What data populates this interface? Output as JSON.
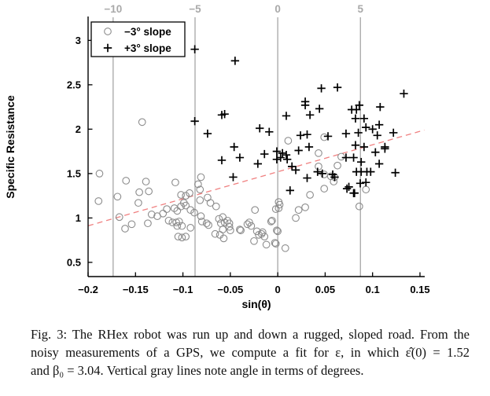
{
  "figure_label": "Fig. 3:",
  "caption": {
    "lines": [
      "Fig. 3: The RHex robot was run up and down a rugged, sloped road. From the",
      "noisy measurements of a GPS, we compute a fit for ε, in which ε̂(0) = 1.52",
      "and β₀ = 3.04. Vertical gray lines note angle in terms of degrees."
    ]
  },
  "chart_data": {
    "type": "scatter",
    "title": "",
    "xlabel": "sin(θ)",
    "ylabel": "Specific Resistance",
    "xlim": [
      -0.2,
      0.155
    ],
    "ylim": [
      0.34,
      3.26
    ],
    "grid": false,
    "xticks": [
      {
        "v": -0.2,
        "label": "−0.2"
      },
      {
        "v": -0.15,
        "label": "−0.15"
      },
      {
        "v": -0.1,
        "label": "−0.1"
      },
      {
        "v": -0.05,
        "label": "−0.05"
      },
      {
        "v": 0,
        "label": "0"
      },
      {
        "v": 0.05,
        "label": "0.05"
      },
      {
        "v": 0.1,
        "label": "0.1"
      },
      {
        "v": 0.15,
        "label": "0.15"
      }
    ],
    "yticks": [
      {
        "v": 0.5,
        "label": "0.5"
      },
      {
        "v": 1,
        "label": "1"
      },
      {
        "v": 1.5,
        "label": "1.5"
      },
      {
        "v": 2,
        "label": "2"
      },
      {
        "v": 2.5,
        "label": "2.5"
      },
      {
        "v": 3,
        "label": "3"
      }
    ],
    "degree_lines": {
      "note": "vertical gray lines mark slope angle in degrees",
      "color": "#a6a6a6",
      "label_color": "#a9a9a9",
      "items": [
        {
          "label": "−10",
          "sin": -0.1736
        },
        {
          "label": "−5",
          "sin": -0.0872
        },
        {
          "label": "0",
          "sin": 0
        },
        {
          "label": "5",
          "sin": 0.0872
        }
      ]
    },
    "fit_line": {
      "intercept": 1.52,
      "slope": 3.04,
      "x_start": -0.2,
      "x_end": 0.1545,
      "style": "dashed",
      "color": "#f08080"
    },
    "legend": {
      "position": "top-left"
    },
    "series": [
      {
        "name": "−3° slope",
        "marker": "circle",
        "color": "#8c8c8c",
        "points": [
          [
            -0.189,
            1.19
          ],
          [
            -0.188,
            1.5
          ],
          [
            -0.169,
            1.24
          ],
          [
            -0.167,
            1.01
          ],
          [
            -0.161,
            0.88
          ],
          [
            -0.16,
            1.42
          ],
          [
            -0.154,
            0.93
          ],
          [
            -0.147,
            1.17
          ],
          [
            -0.146,
            1.29
          ],
          [
            -0.143,
            2.08
          ],
          [
            -0.139,
            1.41
          ],
          [
            -0.137,
            0.94
          ],
          [
            -0.136,
            1.3
          ],
          [
            -0.133,
            1.04
          ],
          [
            -0.127,
            1.02
          ],
          [
            -0.121,
            1.05
          ],
          [
            -0.117,
            1.1
          ],
          [
            -0.115,
            0.97
          ],
          [
            -0.111,
            0.95
          ],
          [
            -0.109,
            1.11
          ],
          [
            -0.108,
            1.4
          ],
          [
            -0.107,
            0.95
          ],
          [
            -0.106,
            1.08
          ],
          [
            -0.106,
            0.91
          ],
          [
            -0.105,
            0.79
          ],
          [
            -0.104,
            0.96
          ],
          [
            -0.102,
            1.26
          ],
          [
            -0.102,
            1.13
          ],
          [
            -0.101,
            0.91
          ],
          [
            -0.101,
            0.78
          ],
          [
            -0.099,
            1.17
          ],
          [
            -0.097,
            1.25
          ],
          [
            -0.097,
            1.14
          ],
          [
            -0.097,
            0.79
          ],
          [
            -0.093,
            1.28
          ],
          [
            -0.092,
            1.09
          ],
          [
            -0.092,
            0.89
          ],
          [
            -0.088,
            1.06
          ],
          [
            -0.084,
            1.38
          ],
          [
            -0.082,
            1.32
          ],
          [
            -0.082,
            1.2
          ],
          [
            -0.081,
            1.46
          ],
          [
            -0.081,
            1.02
          ],
          [
            -0.08,
            0.96
          ],
          [
            -0.075,
            0.94
          ],
          [
            -0.074,
            1.23
          ],
          [
            -0.073,
            0.92
          ],
          [
            -0.071,
            1.17
          ],
          [
            -0.066,
            0.82
          ],
          [
            -0.065,
            1.13
          ],
          [
            -0.062,
            0.99
          ],
          [
            -0.061,
            0.81
          ],
          [
            -0.06,
            0.94
          ],
          [
            -0.058,
            1.01
          ],
          [
            -0.058,
            0.87
          ],
          [
            -0.057,
            0.77
          ],
          [
            -0.056,
            0.95
          ],
          [
            -0.053,
            0.97
          ],
          [
            -0.051,
            0.94
          ],
          [
            -0.051,
            0.9
          ],
          [
            -0.05,
            0.86
          ],
          [
            -0.04,
            0.87
          ],
          [
            -0.039,
            0.86
          ],
          [
            -0.032,
            0.93
          ],
          [
            -0.03,
            0.95
          ],
          [
            -0.028,
            0.91
          ],
          [
            -0.025,
            0.74
          ],
          [
            -0.024,
            1.09
          ],
          [
            -0.022,
            0.85
          ],
          [
            -0.02,
            0.81
          ],
          [
            -0.017,
            0.82
          ],
          [
            -0.016,
            0.84
          ],
          [
            -0.014,
            0.79
          ],
          [
            -0.012,
            0.7
          ],
          [
            -0.007,
            0.96
          ],
          [
            -0.006,
            0.97
          ],
          [
            -0.003,
            0.72
          ],
          [
            -0.002,
            1.1
          ],
          [
            -0.002,
            0.71
          ],
          [
            -0.001,
            0.86
          ],
          [
            0.0,
            0.85
          ],
          [
            0.001,
            1.18
          ],
          [
            0.001,
            1.11
          ],
          [
            0.002,
            1.15
          ],
          [
            0.008,
            0.66
          ],
          [
            0.011,
            1.87
          ],
          [
            0.019,
            1.0
          ],
          [
            0.022,
            1.09
          ],
          [
            0.029,
            1.12
          ],
          [
            0.034,
            1.26
          ],
          [
            0.043,
            1.73
          ],
          [
            0.043,
            1.58
          ],
          [
            0.049,
            1.91
          ],
          [
            0.049,
            1.49
          ],
          [
            0.049,
            1.33
          ],
          [
            0.056,
            1.47
          ],
          [
            0.059,
            1.41
          ],
          [
            0.06,
            1.46
          ],
          [
            0.063,
            1.59
          ],
          [
            0.067,
            1.69
          ],
          [
            0.086,
            1.13
          ],
          [
            0.093,
            1.32
          ]
        ]
      },
      {
        "name": "+3° slope",
        "marker": "plus",
        "color": "#000000",
        "points": [
          [
            -0.0875,
            2.9
          ],
          [
            -0.0875,
            2.09
          ],
          [
            -0.074,
            1.95
          ],
          [
            -0.059,
            2.16
          ],
          [
            -0.059,
            1.65
          ],
          [
            -0.056,
            2.17
          ],
          [
            -0.047,
            1.46
          ],
          [
            -0.046,
            1.8
          ],
          [
            -0.045,
            2.77
          ],
          [
            -0.04,
            1.68
          ],
          [
            -0.021,
            1.61
          ],
          [
            -0.019,
            2.01
          ],
          [
            -0.014,
            1.72
          ],
          [
            -0.009,
            1.97
          ],
          [
            -0.001,
            1.75
          ],
          [
            -0.001,
            1.66
          ],
          [
            0.003,
            1.68
          ],
          [
            0.005,
            1.73
          ],
          [
            0.009,
            2.15
          ],
          [
            0.009,
            1.71
          ],
          [
            0.01,
            1.66
          ],
          [
            0.013,
            1.31
          ],
          [
            0.015,
            1.58
          ],
          [
            0.019,
            1.54
          ],
          [
            0.022,
            1.76
          ],
          [
            0.024,
            1.93
          ],
          [
            0.029,
            2.31
          ],
          [
            0.029,
            2.27
          ],
          [
            0.031,
            1.94
          ],
          [
            0.031,
            1.45
          ],
          [
            0.033,
            1.8
          ],
          [
            0.034,
            2.16
          ],
          [
            0.042,
            1.52
          ],
          [
            0.044,
            2.23
          ],
          [
            0.046,
            2.46
          ],
          [
            0.047,
            1.5
          ],
          [
            0.053,
            1.92
          ],
          [
            0.058,
            1.49
          ],
          [
            0.06,
            1.46
          ],
          [
            0.063,
            2.47
          ],
          [
            0.072,
            1.95
          ],
          [
            0.072,
            1.68
          ],
          [
            0.073,
            1.33
          ],
          [
            0.075,
            1.35
          ],
          [
            0.078,
            2.22
          ],
          [
            0.08,
            1.68
          ],
          [
            0.08,
            1.28
          ],
          [
            0.081,
            1.28
          ],
          [
            0.082,
            2.12
          ],
          [
            0.082,
            1.82
          ],
          [
            0.083,
            2.22
          ],
          [
            0.083,
            1.52
          ],
          [
            0.085,
            1.96
          ],
          [
            0.086,
            2.27
          ],
          [
            0.087,
            1.39
          ],
          [
            0.088,
            1.63
          ],
          [
            0.088,
            1.52
          ],
          [
            0.091,
            2.12
          ],
          [
            0.091,
            1.8
          ],
          [
            0.093,
            2.02
          ],
          [
            0.093,
            1.4
          ],
          [
            0.094,
            1.52
          ],
          [
            0.098,
            1.52
          ],
          [
            0.1,
            2.0
          ],
          [
            0.103,
            1.74
          ],
          [
            0.105,
            1.93
          ],
          [
            0.107,
            2.05
          ],
          [
            0.107,
            1.61
          ],
          [
            0.108,
            2.25
          ],
          [
            0.113,
            1.8
          ],
          [
            0.113,
            1.78
          ],
          [
            0.122,
            1.96
          ],
          [
            0.124,
            1.51
          ],
          [
            0.133,
            2.4
          ]
        ]
      }
    ],
    "colors": {
      "axis": "#000000",
      "background": "#ffffff"
    }
  }
}
